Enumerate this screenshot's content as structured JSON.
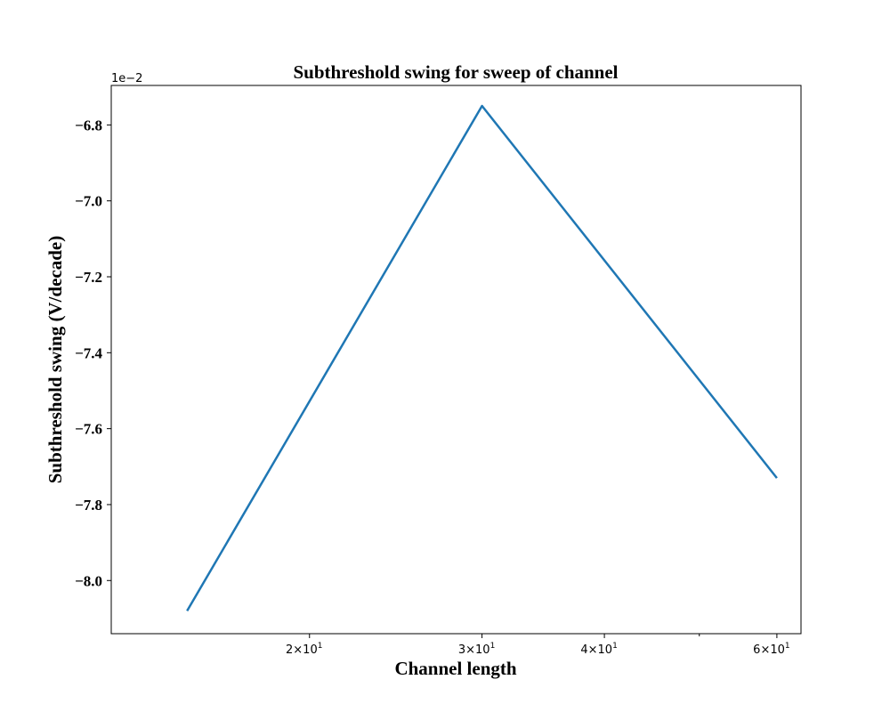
{
  "chart_data": {
    "type": "line",
    "title": "Subthreshold swing for sweep of channel",
    "xlabel": "Channel length",
    "ylabel": "Subthreshold swing (V/decade)",
    "y_offset_label": "1e−2",
    "x_scale": "log",
    "xlim": [
      12.55,
      63.5
    ],
    "ylim": [
      -0.0814,
      -0.06696
    ],
    "grid": false,
    "legend": "none",
    "color": "#1f77b4",
    "x": [
      15,
      30,
      60
    ],
    "y": [
      -0.0808,
      -0.0675,
      -0.0773
    ],
    "x_ticks": [
      {
        "value": 20,
        "base": "2×10",
        "exp": "1"
      },
      {
        "value": 30,
        "base": "3×10",
        "exp": "1"
      },
      {
        "value": 40,
        "base": "4×10",
        "exp": "1"
      },
      {
        "value": 60,
        "base": "6×10",
        "exp": "1"
      }
    ],
    "x_minor_ticks": [
      50
    ],
    "y_ticks": [
      {
        "value": -0.068,
        "label": "−6.8"
      },
      {
        "value": -0.07,
        "label": "−7.0"
      },
      {
        "value": -0.072,
        "label": "−7.2"
      },
      {
        "value": -0.074,
        "label": "−7.4"
      },
      {
        "value": -0.076,
        "label": "−7.6"
      },
      {
        "value": -0.078,
        "label": "−7.8"
      },
      {
        "value": -0.08,
        "label": "−8.0"
      }
    ]
  }
}
